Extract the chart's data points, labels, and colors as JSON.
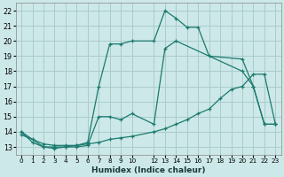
{
  "xlabel": "Humidex (Indice chaleur)",
  "background_color": "#cde8e8",
  "grid_color": "#aacccc",
  "line_color": "#1a7a6e",
  "xlim": [
    -0.5,
    23.5
  ],
  "ylim": [
    12.5,
    22.5
  ],
  "xticks": [
    0,
    1,
    2,
    3,
    4,
    5,
    6,
    7,
    8,
    9,
    10,
    12,
    13,
    14,
    15,
    16,
    17,
    18,
    19,
    20,
    21,
    22,
    23
  ],
  "yticks": [
    13,
    14,
    15,
    16,
    17,
    18,
    19,
    20,
    21,
    22
  ],
  "line1_x": [
    0,
    1,
    2,
    3,
    4,
    5,
    6,
    7,
    8,
    9,
    10,
    12,
    13,
    14,
    15,
    16,
    17,
    20,
    21,
    22,
    23
  ],
  "line1_y": [
    14,
    13.3,
    13,
    12.9,
    13,
    13.1,
    13.3,
    17,
    19.8,
    19.8,
    20.0,
    20.0,
    22.0,
    21.5,
    20.9,
    20.9,
    19.0,
    18.8,
    17.0,
    14.5,
    14.5
  ],
  "line2_x": [
    0,
    2,
    3,
    4,
    5,
    6,
    7,
    8,
    9,
    10,
    12,
    13,
    14,
    20,
    21,
    22,
    23
  ],
  "line2_y": [
    14,
    13,
    13,
    13,
    13,
    13.1,
    15,
    15,
    14.8,
    15.2,
    14.5,
    19.5,
    20.0,
    18.0,
    17.0,
    14.5,
    14.5
  ],
  "line3_x": [
    0,
    1,
    2,
    3,
    4,
    5,
    6,
    7,
    8,
    9,
    10,
    12,
    13,
    14,
    15,
    16,
    17,
    18,
    19,
    20,
    21,
    22,
    23
  ],
  "line3_y": [
    13.8,
    13.5,
    13.2,
    13.1,
    13.1,
    13.1,
    13.2,
    13.3,
    13.5,
    13.6,
    13.7,
    14.0,
    14.2,
    14.5,
    14.8,
    15.2,
    15.5,
    16.2,
    16.8,
    17.0,
    17.8,
    17.8,
    14.5
  ]
}
